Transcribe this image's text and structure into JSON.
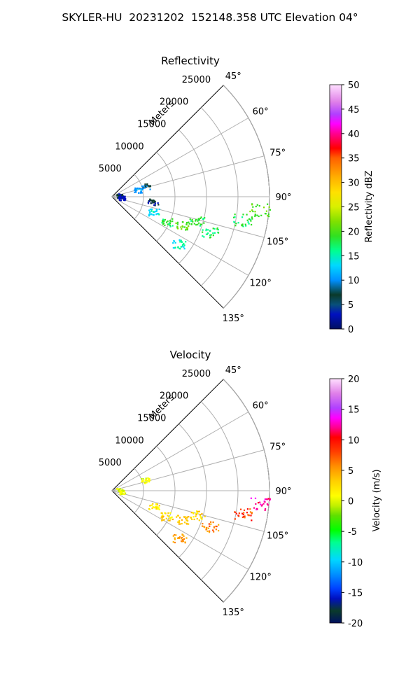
{
  "figure": {
    "title": "SKYLER-HU  20231202  152148.358 UTC Elevation 04°"
  },
  "chart_data": [
    {
      "type": "polar-sector",
      "title": "Reflectivity",
      "range_label": "Meters",
      "r_ticks": [
        5000,
        10000,
        15000,
        20000,
        25000
      ],
      "theta_ticks": [
        "45°",
        "60°",
        "75°",
        "90°",
        "105°",
        "120°",
        "135°"
      ],
      "theta_range_deg": [
        45,
        135
      ],
      "r_max": 25000,
      "colorbar": {
        "label": "Reflectivity dBZ",
        "ticks": [
          0,
          5,
          10,
          15,
          20,
          25,
          30,
          35,
          40,
          45,
          50
        ],
        "range": [
          0,
          50
        ]
      },
      "echoes": [
        {
          "azimuth_deg": 72,
          "range_m": 5500,
          "value": 10
        },
        {
          "azimuth_deg": 76,
          "range_m": 4300,
          "value": 12
        },
        {
          "azimuth_deg": 80,
          "range_m": 1200,
          "value": 8
        },
        {
          "azimuth_deg": 95,
          "range_m": 1500,
          "value": 5
        },
        {
          "azimuth_deg": 97,
          "range_m": 6500,
          "value": 8
        },
        {
          "azimuth_deg": 110,
          "range_m": 7000,
          "value": 15
        },
        {
          "azimuth_deg": 115,
          "range_m": 9500,
          "value": 20
        },
        {
          "azimuth_deg": 112,
          "range_m": 12000,
          "value": 22
        },
        {
          "azimuth_deg": 106,
          "range_m": 14000,
          "value": 20
        },
        {
          "azimuth_deg": 110,
          "range_m": 16500,
          "value": 19
        },
        {
          "azimuth_deg": 100,
          "range_m": 21000,
          "value": 20
        },
        {
          "azimuth_deg": 95,
          "range_m": 23500,
          "value": 21
        },
        {
          "azimuth_deg": 125,
          "range_m": 13000,
          "value": 17
        }
      ]
    },
    {
      "type": "polar-sector",
      "title": "Velocity",
      "range_label": "Meters",
      "r_ticks": [
        5000,
        10000,
        15000,
        20000,
        25000
      ],
      "theta_ticks": [
        "45°",
        "60°",
        "75°",
        "90°",
        "105°",
        "120°",
        "135°"
      ],
      "theta_range_deg": [
        45,
        135
      ],
      "r_max": 25000,
      "colorbar": {
        "label": "Velocity (m/s)",
        "ticks": [
          -20,
          -15,
          -10,
          -5,
          0,
          5,
          10,
          15,
          20
        ],
        "range": [
          -20,
          20
        ]
      },
      "echoes": [
        {
          "azimuth_deg": 72,
          "range_m": 5500,
          "value": 1
        },
        {
          "azimuth_deg": 80,
          "range_m": 1200,
          "value": 0
        },
        {
          "azimuth_deg": 95,
          "range_m": 1500,
          "value": 0
        },
        {
          "azimuth_deg": 110,
          "range_m": 7000,
          "value": 3
        },
        {
          "azimuth_deg": 115,
          "range_m": 9500,
          "value": 4
        },
        {
          "azimuth_deg": 112,
          "range_m": 12000,
          "value": 5
        },
        {
          "azimuth_deg": 106,
          "range_m": 14000,
          "value": 4
        },
        {
          "azimuth_deg": 110,
          "range_m": 16500,
          "value": 8
        },
        {
          "azimuth_deg": 100,
          "range_m": 21000,
          "value": 10
        },
        {
          "azimuth_deg": 95,
          "range_m": 23500,
          "value": 14
        },
        {
          "azimuth_deg": 125,
          "range_m": 13000,
          "value": 7
        }
      ]
    }
  ]
}
